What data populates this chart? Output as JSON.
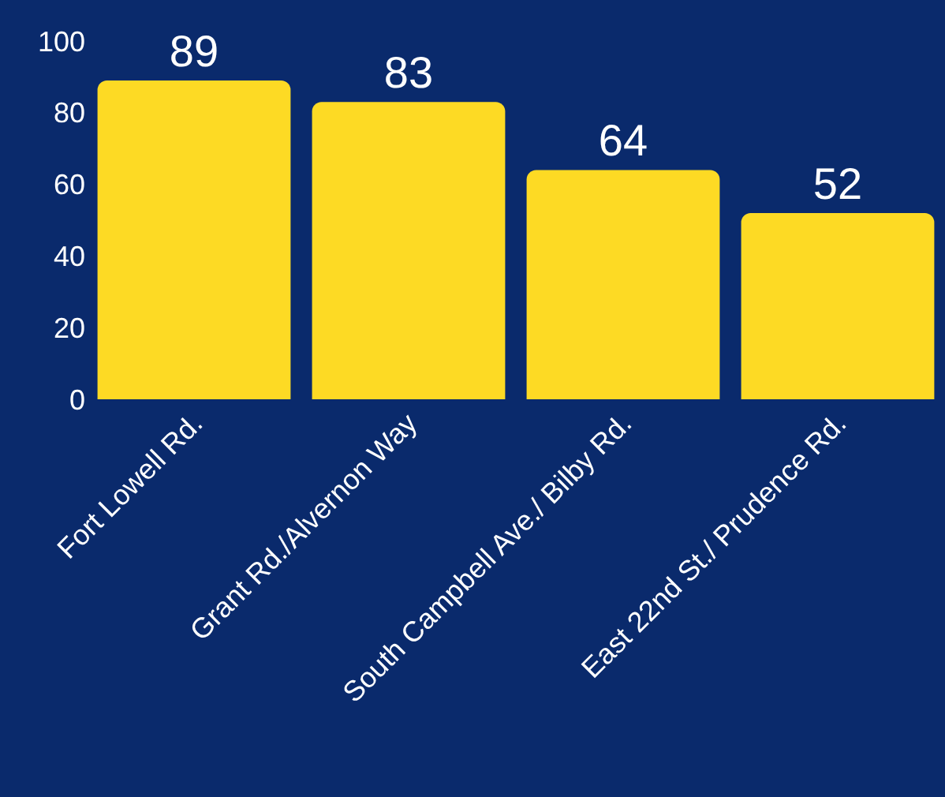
{
  "chart_data": {
    "type": "bar",
    "categories": [
      "Fort Lowell Rd.",
      "Grant Rd./Alvernon Way",
      "South Campbell Ave./ Bilby Rd.",
      "East 22nd St./ Prudence Rd."
    ],
    "values": [
      89,
      83,
      64,
      52
    ],
    "color": "#fdda24",
    "ylim": [
      0,
      100
    ],
    "yticks": [
      0,
      20,
      40,
      60,
      80,
      100
    ],
    "data_labels": true,
    "legend": false
  }
}
